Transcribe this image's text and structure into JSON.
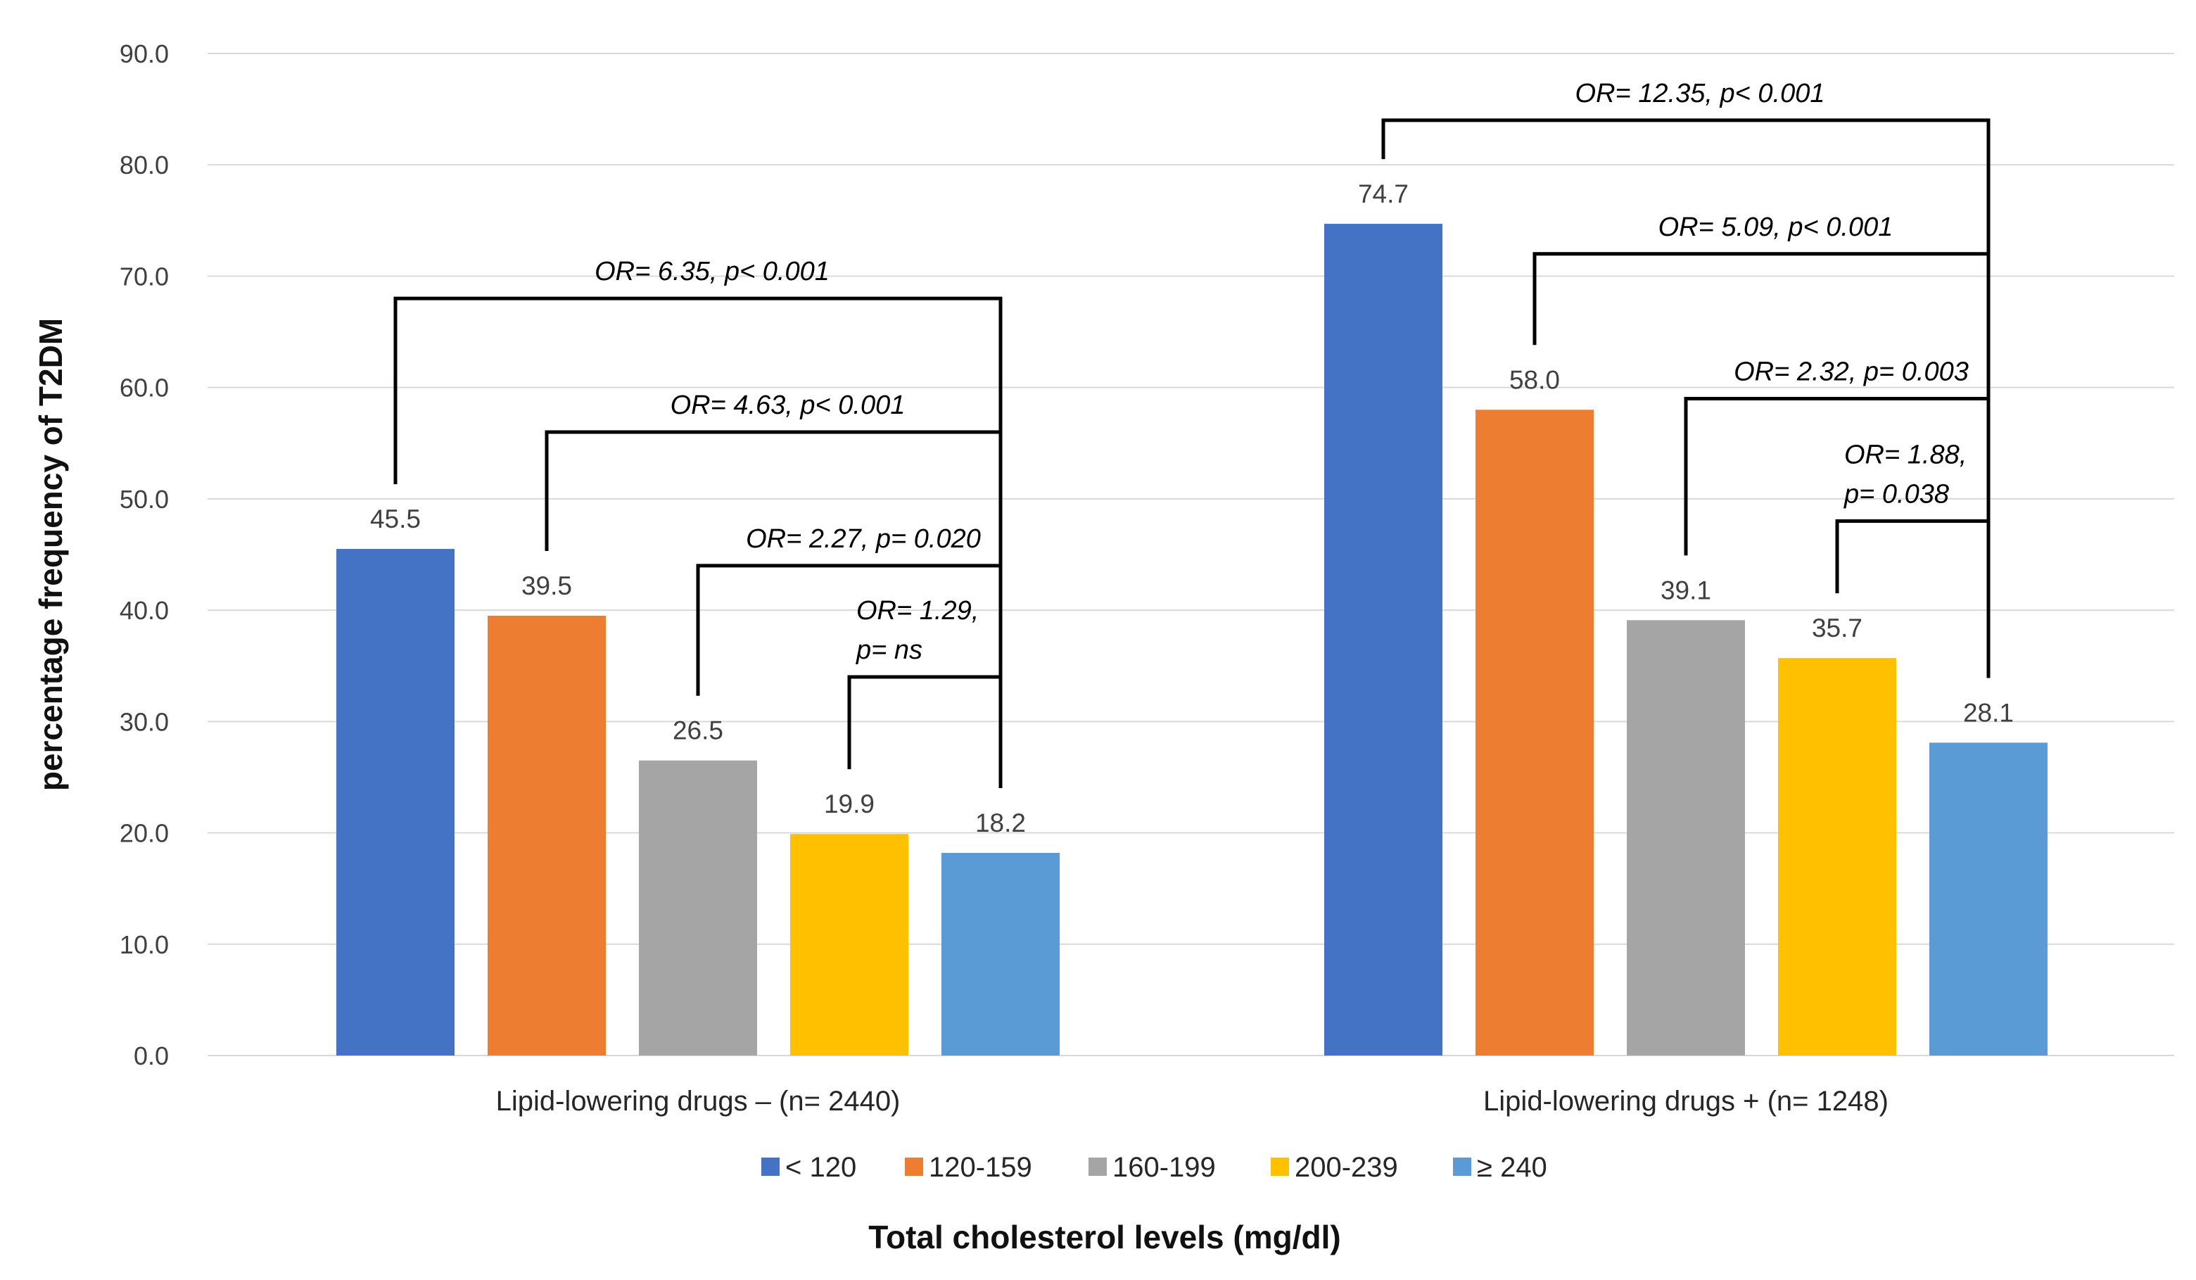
{
  "chart_data": {
    "type": "bar",
    "xlabel": "Total cholesterol levels (mg/dl)",
    "ylabel": "percentage frequency of T2DM",
    "ylim": [
      0,
      90
    ],
    "yticks": [
      "0.0",
      "10.0",
      "20.0",
      "30.0",
      "40.0",
      "50.0",
      "60.0",
      "70.0",
      "80.0",
      "90.0"
    ],
    "grid": true,
    "legend_position": "bottom",
    "categories": [
      "Lipid-lowering drugs  – (n= 2440)",
      "Lipid-lowering drugs  + (n= 1248)"
    ],
    "series": [
      {
        "name": "< 120",
        "color": "#4472C4",
        "values": [
          45.5,
          74.7
        ],
        "labels": [
          "45.5",
          "74.7"
        ]
      },
      {
        "name": "120-159",
        "color": "#ED7D31",
        "values": [
          39.5,
          58.0
        ],
        "labels": [
          "39.5",
          "58.0"
        ]
      },
      {
        "name": "160-199",
        "color": "#A5A5A5",
        "values": [
          26.5,
          39.1
        ],
        "labels": [
          "26.5",
          "39.1"
        ]
      },
      {
        "name": "200-239",
        "color": "#FFC000",
        "values": [
          19.9,
          35.7
        ],
        "labels": [
          "19.9",
          "35.7"
        ]
      },
      {
        "name": "≥ 240",
        "color": "#5B9BD5",
        "values": [
          18.2,
          28.1
        ],
        "labels": [
          "18.2",
          "28.1"
        ]
      }
    ],
    "annotations": [
      {
        "group": 0,
        "from_series": 0,
        "to_series": 4,
        "level": 68,
        "lines": [
          "OR= 6.35, p< 0.001"
        ]
      },
      {
        "group": 0,
        "from_series": 1,
        "to_series": 4,
        "level": 56,
        "lines": [
          "OR= 4.63, p< 0.001"
        ]
      },
      {
        "group": 0,
        "from_series": 2,
        "to_series": 4,
        "level": 44,
        "lines": [
          "OR= 2.27, p= 0.020"
        ]
      },
      {
        "group": 0,
        "from_series": 3,
        "to_series": 4,
        "level": 34,
        "lines": [
          "OR= 1.29,",
          "p= ns"
        ]
      },
      {
        "group": 1,
        "from_series": 0,
        "to_series": 4,
        "level": 84,
        "lines": [
          "OR= 12.35, p< 0.001"
        ]
      },
      {
        "group": 1,
        "from_series": 1,
        "to_series": 4,
        "level": 72,
        "lines": [
          "OR= 5.09, p< 0.001"
        ]
      },
      {
        "group": 1,
        "from_series": 2,
        "to_series": 4,
        "level": 59,
        "lines": [
          "OR= 2.32, p= 0.003"
        ]
      },
      {
        "group": 1,
        "from_series": 3,
        "to_series": 4,
        "level": 48,
        "lines": [
          "OR= 1.88,",
          "p= 0.038"
        ]
      }
    ]
  }
}
